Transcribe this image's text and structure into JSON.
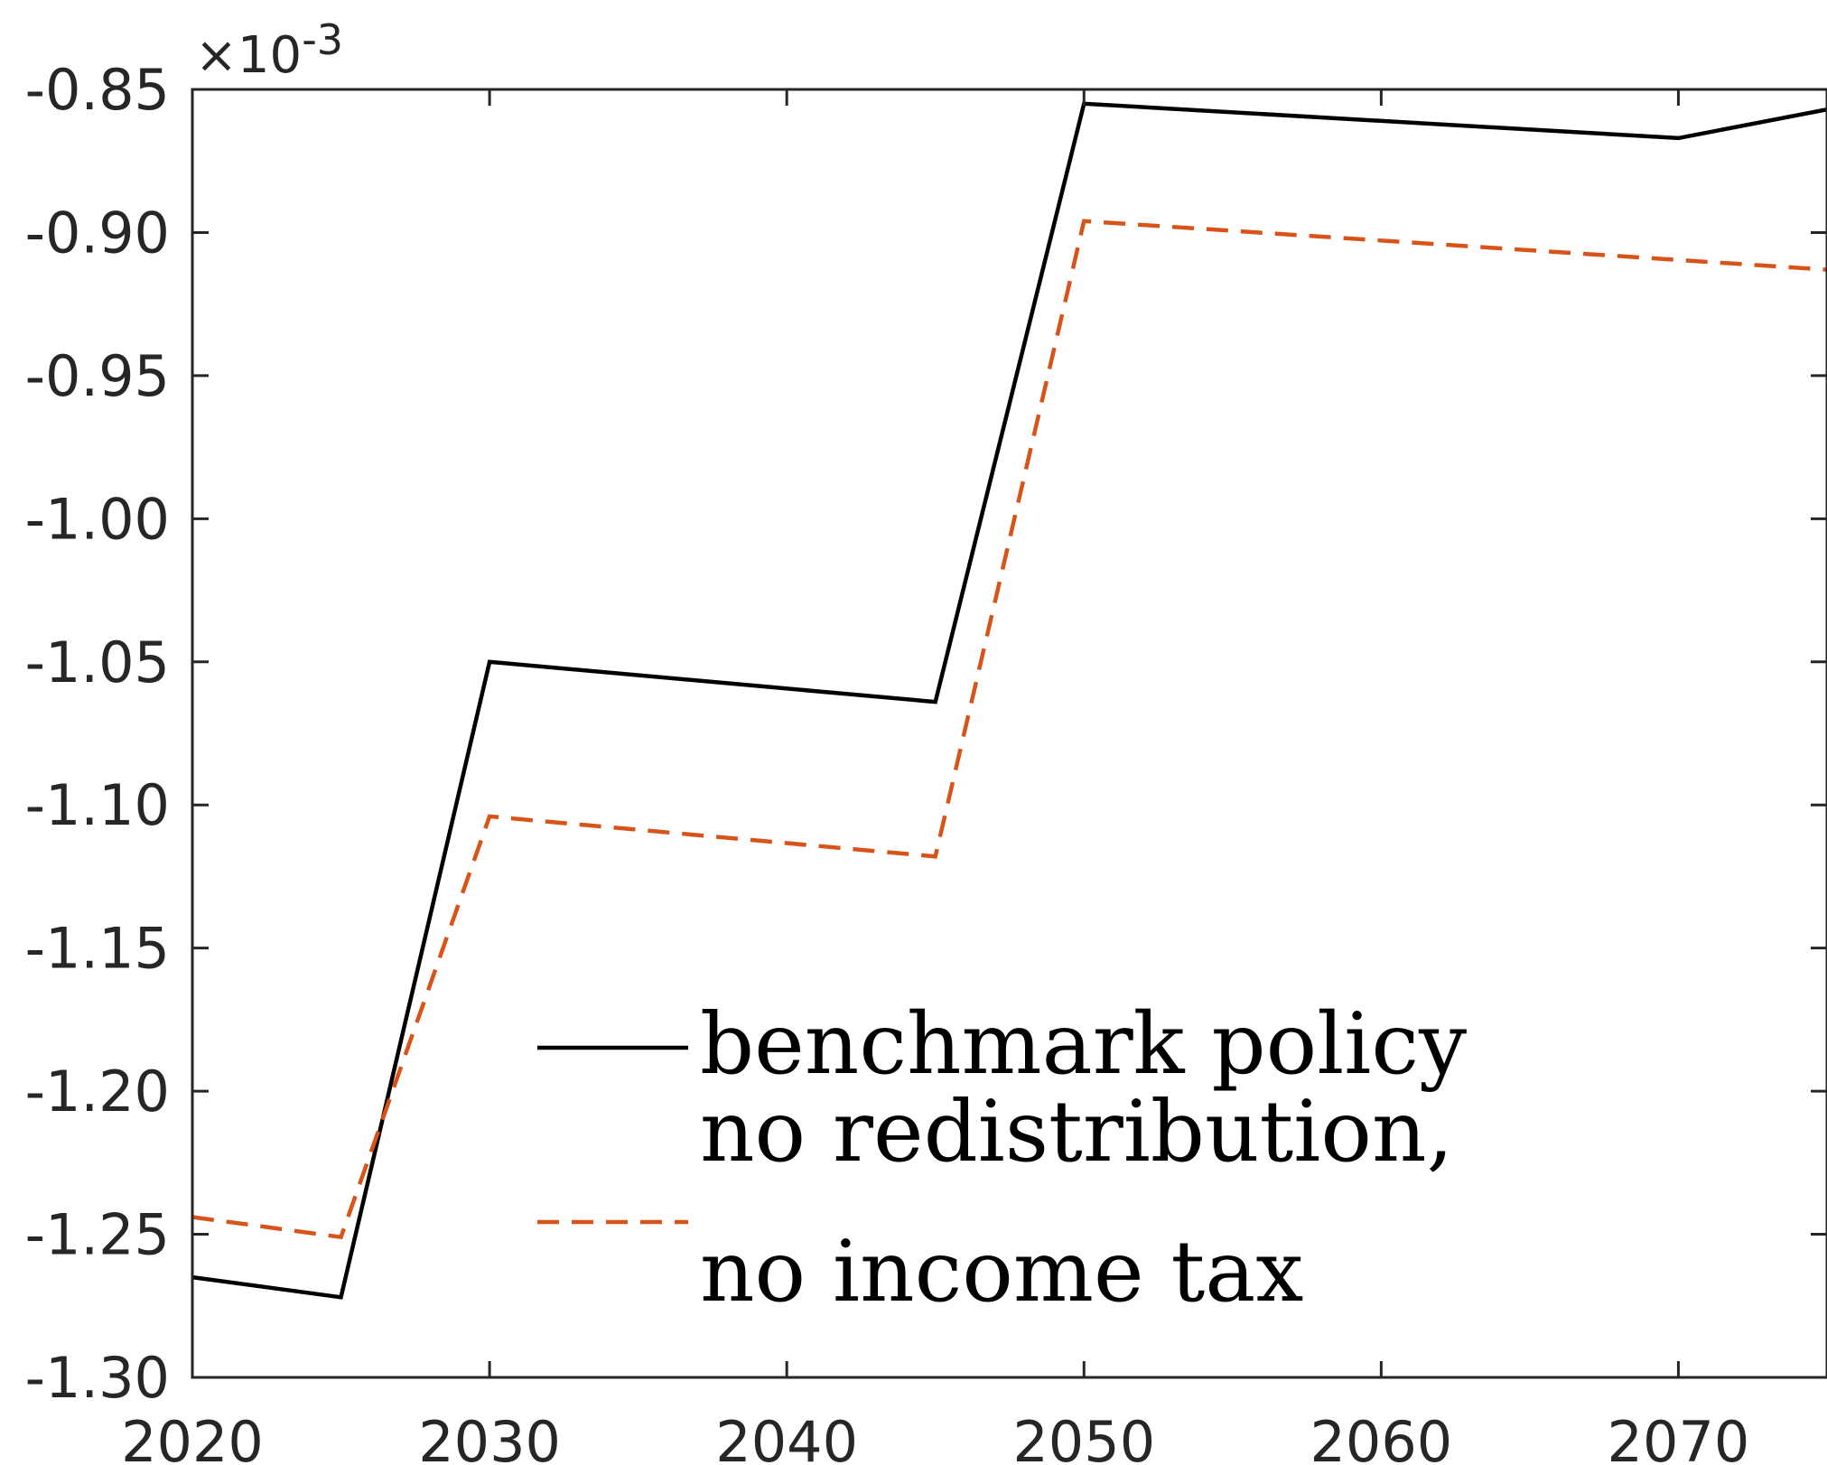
{
  "chart_data": {
    "type": "line",
    "title": "",
    "xlabel": "",
    "ylabel": "",
    "y_exponent_label": "×10",
    "y_exponent_power": "-3",
    "xlim": [
      2020,
      2075
    ],
    "ylim": [
      -1.3,
      -0.85
    ],
    "x_ticks": [
      2020,
      2030,
      2040,
      2050,
      2060,
      2070
    ],
    "x_tick_labels": [
      "2020",
      "2030",
      "2040",
      "2050",
      "2060",
      "2070"
    ],
    "y_ticks": [
      -0.85,
      -0.9,
      -0.95,
      -1.0,
      -1.05,
      -1.1,
      -1.15,
      -1.2,
      -1.25,
      -1.3
    ],
    "y_tick_labels": [
      "-0.85",
      "-0.90",
      "-0.95",
      "-1.00",
      "-1.05",
      "-1.10",
      "-1.15",
      "-1.20",
      "-1.25",
      "-1.30"
    ],
    "grid": false,
    "legend_position": "bottom-center",
    "series": [
      {
        "name": "benchmark policy",
        "color": "#000000",
        "style": "solid",
        "x": [
          2020,
          2025,
          2030,
          2045,
          2050,
          2070,
          2075
        ],
        "y": [
          -1.265,
          -1.272,
          -1.05,
          -1.064,
          -0.855,
          -0.867,
          -0.857
        ]
      },
      {
        "name": "no redistribution, no income tax",
        "color": "#D95319",
        "style": "dashed",
        "x": [
          2020,
          2025,
          2030,
          2045,
          2050,
          2075
        ],
        "y": [
          -1.244,
          -1.251,
          -1.104,
          -1.118,
          -0.896,
          -0.913
        ]
      }
    ],
    "legend_entries": [
      {
        "lines": [
          "benchmark policy"
        ],
        "color": "#000000",
        "style": "solid"
      },
      {
        "lines": [
          "no redistribution,",
          "no income tax"
        ],
        "color": "#D95319",
        "style": "dashed"
      }
    ]
  }
}
